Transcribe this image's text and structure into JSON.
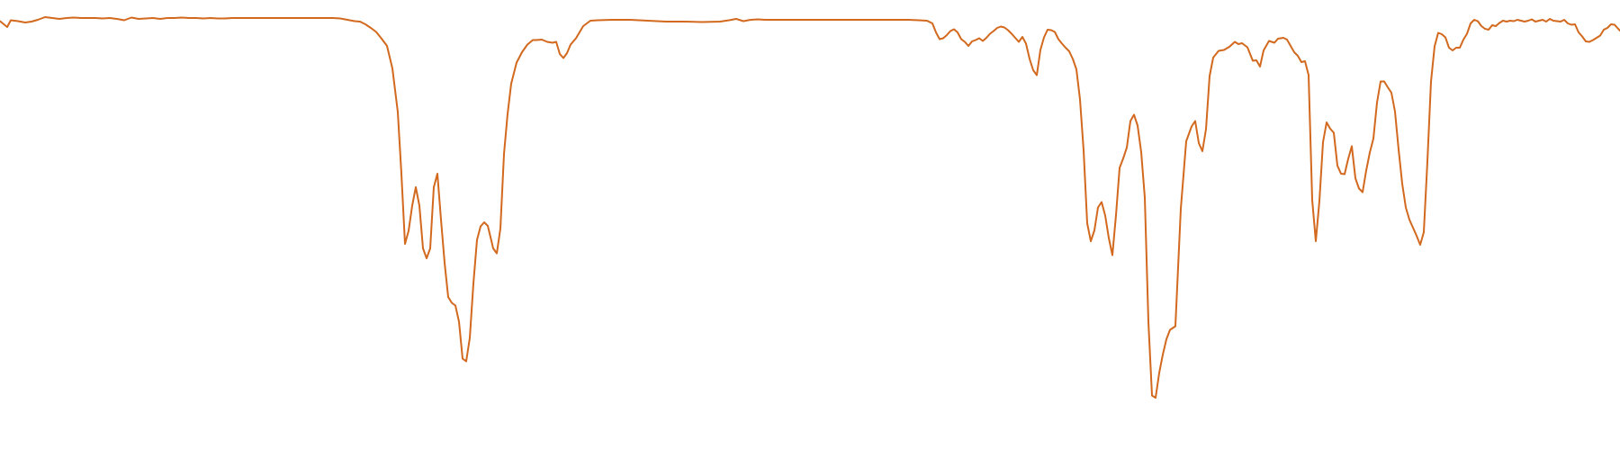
{
  "chart_data": {
    "type": "line",
    "title": "",
    "xlabel": "",
    "ylabel": "",
    "grid": false,
    "legend": "none",
    "axes_visible": false,
    "xlim": [
      0,
      1800
    ],
    "ylim": [
      0,
      100
    ],
    "series": [
      {
        "color": "#d2691e",
        "points": [
          [
            0,
            95.3
          ],
          [
            8,
            94
          ],
          [
            12,
            95.5
          ],
          [
            20,
            95.3
          ],
          [
            28,
            95
          ],
          [
            35,
            95.2
          ],
          [
            42,
            95.6
          ],
          [
            50,
            96.2
          ],
          [
            58,
            96
          ],
          [
            66,
            95.8
          ],
          [
            74,
            96
          ],
          [
            82,
            96.1
          ],
          [
            90,
            96
          ],
          [
            98,
            96
          ],
          [
            106,
            96
          ],
          [
            114,
            95.9
          ],
          [
            122,
            96
          ],
          [
            130,
            95.8
          ],
          [
            138,
            95.5
          ],
          [
            146,
            96.1
          ],
          [
            154,
            95.8
          ],
          [
            162,
            95.9
          ],
          [
            170,
            96
          ],
          [
            178,
            95.8
          ],
          [
            186,
            96
          ],
          [
            194,
            96
          ],
          [
            202,
            96.1
          ],
          [
            210,
            96
          ],
          [
            218,
            96
          ],
          [
            226,
            95.9
          ],
          [
            234,
            96
          ],
          [
            242,
            95.9
          ],
          [
            250,
            95.9
          ],
          [
            258,
            96
          ],
          [
            266,
            96
          ],
          [
            274,
            96
          ],
          [
            282,
            96
          ],
          [
            290,
            96
          ],
          [
            298,
            96
          ],
          [
            306,
            96
          ],
          [
            314,
            96
          ],
          [
            322,
            96
          ],
          [
            330,
            96
          ],
          [
            338,
            96
          ],
          [
            346,
            96
          ],
          [
            354,
            96
          ],
          [
            362,
            96
          ],
          [
            370,
            96
          ],
          [
            378,
            95.9
          ],
          [
            386,
            95.6
          ],
          [
            394,
            95.3
          ],
          [
            400,
            95.2
          ],
          [
            406,
            94.6
          ],
          [
            412,
            93.8
          ],
          [
            418,
            92.9
          ],
          [
            424,
            91.4
          ],
          [
            430,
            89.8
          ],
          [
            436,
            84.8
          ],
          [
            442,
            75.1
          ],
          [
            446,
            61.4
          ],
          [
            450,
            45.8
          ],
          [
            454,
            48.7
          ],
          [
            458,
            54.3
          ],
          [
            462,
            58.4
          ],
          [
            466,
            54.3
          ],
          [
            470,
            44.8
          ],
          [
            474,
            42.6
          ],
          [
            478,
            44.8
          ],
          [
            482,
            58.4
          ],
          [
            486,
            61.4
          ],
          [
            490,
            51.2
          ],
          [
            494,
            41.6
          ],
          [
            498,
            34
          ],
          [
            502,
            32.7
          ],
          [
            506,
            32.1
          ],
          [
            510,
            28.5
          ],
          [
            514,
            20.3
          ],
          [
            518,
            19.7
          ],
          [
            522,
            24.9
          ],
          [
            526,
            37
          ],
          [
            530,
            46.7
          ],
          [
            534,
            49.7
          ],
          [
            538,
            50.6
          ],
          [
            542,
            49.8
          ],
          [
            546,
            46.5
          ],
          [
            548,
            44.8
          ],
          [
            552,
            43.7
          ],
          [
            556,
            49.2
          ],
          [
            560,
            65.8
          ],
          [
            564,
            74.7
          ],
          [
            568,
            81.4
          ],
          [
            574,
            86.1
          ],
          [
            580,
            88.4
          ],
          [
            586,
            90.1
          ],
          [
            592,
            91.1
          ],
          [
            596,
            91.1
          ],
          [
            602,
            91.2
          ],
          [
            608,
            90.7
          ],
          [
            614,
            90.5
          ],
          [
            618,
            90.7
          ],
          [
            622,
            88
          ],
          [
            626,
            87.1
          ],
          [
            630,
            88.2
          ],
          [
            634,
            90.1
          ],
          [
            640,
            91.5
          ],
          [
            648,
            94.2
          ],
          [
            656,
            95.4
          ],
          [
            664,
            95.5
          ],
          [
            680,
            95.6
          ],
          [
            700,
            95.6
          ],
          [
            720,
            95.4
          ],
          [
            740,
            95.2
          ],
          [
            760,
            95.2
          ],
          [
            780,
            95.1
          ],
          [
            800,
            95.2
          ],
          [
            810,
            95.5
          ],
          [
            818,
            95.8
          ],
          [
            826,
            95.3
          ],
          [
            834,
            95.6
          ],
          [
            842,
            95.7
          ],
          [
            850,
            95.6
          ],
          [
            870,
            95.6
          ],
          [
            890,
            95.6
          ],
          [
            910,
            95.6
          ],
          [
            930,
            95.6
          ],
          [
            950,
            95.6
          ],
          [
            970,
            95.6
          ],
          [
            990,
            95.6
          ],
          [
            1010,
            95.6
          ],
          [
            1030,
            95.4
          ],
          [
            1036,
            94.8
          ],
          [
            1040,
            92.8
          ],
          [
            1044,
            91.3
          ],
          [
            1048,
            91.5
          ],
          [
            1052,
            92.2
          ],
          [
            1056,
            93.1
          ],
          [
            1060,
            93.5
          ],
          [
            1064,
            92.8
          ],
          [
            1068,
            91.3
          ],
          [
            1072,
            90.7
          ],
          [
            1076,
            89.8
          ],
          [
            1080,
            90.8
          ],
          [
            1084,
            91.1
          ],
          [
            1088,
            91.5
          ],
          [
            1092,
            90.9
          ],
          [
            1096,
            91.6
          ],
          [
            1100,
            92.5
          ],
          [
            1104,
            93.1
          ],
          [
            1108,
            93.8
          ],
          [
            1112,
            94.1
          ],
          [
            1116,
            93.9
          ],
          [
            1120,
            93.3
          ],
          [
            1124,
            92.5
          ],
          [
            1128,
            91.6
          ],
          [
            1132,
            90.7
          ],
          [
            1136,
            91.8
          ],
          [
            1140,
            90.3
          ],
          [
            1144,
            86.9
          ],
          [
            1148,
            84.4
          ],
          [
            1152,
            83.3
          ],
          [
            1156,
            88.9
          ],
          [
            1160,
            91.7
          ],
          [
            1164,
            93.4
          ],
          [
            1168,
            93.3
          ],
          [
            1172,
            92.9
          ],
          [
            1176,
            91.3
          ],
          [
            1180,
            90.3
          ],
          [
            1184,
            89.4
          ],
          [
            1188,
            88.6
          ],
          [
            1192,
            86.9
          ],
          [
            1196,
            84.6
          ],
          [
            1200,
            77.9
          ],
          [
            1204,
            66.6
          ],
          [
            1208,
            50.4
          ],
          [
            1212,
            46.4
          ],
          [
            1216,
            48.8
          ],
          [
            1220,
            53.9
          ],
          [
            1224,
            55.1
          ],
          [
            1228,
            52.1
          ],
          [
            1232,
            47.1
          ],
          [
            1236,
            43.3
          ],
          [
            1240,
            52.2
          ],
          [
            1244,
            62.7
          ],
          [
            1248,
            64.8
          ],
          [
            1252,
            67.2
          ],
          [
            1256,
            73.1
          ],
          [
            1260,
            74.5
          ],
          [
            1264,
            72.1
          ],
          [
            1268,
            66.2
          ],
          [
            1272,
            56.1
          ],
          [
            1276,
            28.5
          ],
          [
            1280,
            12.1
          ],
          [
            1284,
            11.6
          ],
          [
            1288,
            17.1
          ],
          [
            1292,
            21.2
          ],
          [
            1296,
            24.6
          ],
          [
            1300,
            26.7
          ],
          [
            1306,
            27.5
          ],
          [
            1312,
            53.6
          ],
          [
            1318,
            68.6
          ],
          [
            1324,
            71.9
          ],
          [
            1328,
            73.1
          ],
          [
            1332,
            68.2
          ],
          [
            1336,
            66.4
          ],
          [
            1340,
            71.3
          ],
          [
            1344,
            83.1
          ],
          [
            1348,
            87.2
          ],
          [
            1354,
            88.7
          ],
          [
            1360,
            88.9
          ],
          [
            1366,
            89.6
          ],
          [
            1372,
            90.7
          ],
          [
            1376,
            90.2
          ],
          [
            1380,
            90.4
          ],
          [
            1386,
            89.5
          ],
          [
            1392,
            86.5
          ],
          [
            1396,
            86.6
          ],
          [
            1400,
            85.2
          ],
          [
            1404,
            88.8
          ],
          [
            1410,
            90.9
          ],
          [
            1416,
            90.5
          ],
          [
            1420,
            91.4
          ],
          [
            1426,
            91.6
          ],
          [
            1430,
            91.2
          ],
          [
            1434,
            89.8
          ],
          [
            1438,
            88.4
          ],
          [
            1442,
            87.6
          ],
          [
            1446,
            86.2
          ],
          [
            1450,
            86.4
          ],
          [
            1454,
            83.3
          ],
          [
            1458,
            55.6
          ],
          [
            1462,
            46.4
          ],
          [
            1466,
            55.3
          ],
          [
            1470,
            68.4
          ],
          [
            1474,
            72.8
          ],
          [
            1478,
            71.4
          ],
          [
            1482,
            70.5
          ],
          [
            1486,
            63.2
          ],
          [
            1490,
            61.4
          ],
          [
            1494,
            61.3
          ],
          [
            1498,
            64.7
          ],
          [
            1502,
            67.5
          ],
          [
            1506,
            60.4
          ],
          [
            1510,
            58.1
          ],
          [
            1514,
            57.3
          ],
          [
            1518,
            62.1
          ],
          [
            1522,
            66.1
          ],
          [
            1526,
            69.2
          ],
          [
            1530,
            77.2
          ],
          [
            1534,
            81.9
          ],
          [
            1538,
            81.9
          ],
          [
            1542,
            80.6
          ],
          [
            1546,
            79.4
          ],
          [
            1550,
            75.2
          ],
          [
            1554,
            66.8
          ],
          [
            1558,
            59.2
          ],
          [
            1562,
            53.9
          ],
          [
            1566,
            51.2
          ],
          [
            1570,
            49.4
          ],
          [
            1574,
            47.6
          ],
          [
            1578,
            45.6
          ],
          [
            1582,
            48.4
          ],
          [
            1586,
            64.1
          ],
          [
            1590,
            81.9
          ],
          [
            1594,
            89.7
          ],
          [
            1598,
            92.7
          ],
          [
            1602,
            92.4
          ],
          [
            1606,
            91.7
          ],
          [
            1610,
            89.4
          ],
          [
            1614,
            88.8
          ],
          [
            1618,
            89.4
          ],
          [
            1622,
            89.4
          ],
          [
            1626,
            91.2
          ],
          [
            1630,
            92.5
          ],
          [
            1634,
            94.8
          ],
          [
            1638,
            95.6
          ],
          [
            1642,
            95.3
          ],
          [
            1646,
            94.2
          ],
          [
            1650,
            93.6
          ],
          [
            1654,
            93.4
          ],
          [
            1658,
            94.4
          ],
          [
            1662,
            94.2
          ],
          [
            1666,
            94.9
          ],
          [
            1670,
            95.4
          ],
          [
            1674,
            95.2
          ],
          [
            1678,
            95.4
          ],
          [
            1682,
            95.3
          ],
          [
            1686,
            95.6
          ],
          [
            1690,
            95.4
          ],
          [
            1694,
            95.2
          ],
          [
            1698,
            95.4
          ],
          [
            1702,
            95.7
          ],
          [
            1706,
            95.2
          ],
          [
            1710,
            95.4
          ],
          [
            1714,
            95.6
          ],
          [
            1718,
            95.2
          ],
          [
            1722,
            95.8
          ],
          [
            1726,
            95.4
          ],
          [
            1730,
            95.3
          ],
          [
            1734,
            95.2
          ],
          [
            1738,
            95.6
          ],
          [
            1742,
            94.8
          ],
          [
            1746,
            94.5
          ],
          [
            1750,
            94.6
          ],
          [
            1754,
            92.8
          ],
          [
            1758,
            91.9
          ],
          [
            1762,
            90.8
          ],
          [
            1766,
            90.7
          ],
          [
            1770,
            91.1
          ],
          [
            1774,
            91.6
          ],
          [
            1778,
            92.1
          ],
          [
            1782,
            93.4
          ],
          [
            1786,
            93.8
          ],
          [
            1790,
            94.6
          ],
          [
            1794,
            94.5
          ],
          [
            1798,
            93.6
          ],
          [
            1800,
            93.2
          ]
        ]
      }
    ]
  }
}
